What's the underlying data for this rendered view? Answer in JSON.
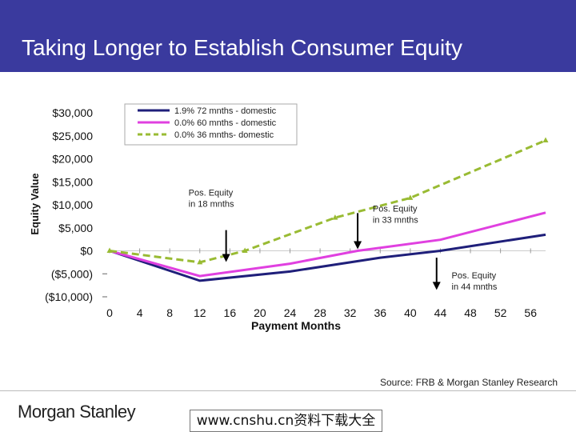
{
  "title": "Taking Longer to Establish Consumer Equity",
  "source": "Source: FRB & Morgan Stanley Research",
  "logo_text": "Morgan Stanley",
  "watermark": "www.cnshu.cn资料下载大全",
  "colors": {
    "header": "#3a3a9e",
    "series_domestic_72": "#1f1f7a",
    "series_domestic_60": "#e040e0",
    "series_domestic_36": "#99bb33"
  },
  "chart_data": {
    "type": "line",
    "xlabel": "Payment Months",
    "ylabel": "Equity Value",
    "xlim": [
      0,
      58
    ],
    "ylim": [
      -10000,
      30000
    ],
    "x_ticks": [
      0,
      4,
      8,
      12,
      16,
      20,
      24,
      28,
      32,
      36,
      40,
      44,
      48,
      52,
      56
    ],
    "y_ticks": [
      {
        "value": 30000,
        "label": "$30,000"
      },
      {
        "value": 25000,
        "label": "$25,000"
      },
      {
        "value": 20000,
        "label": "$20,000"
      },
      {
        "value": 15000,
        "label": "$15,000"
      },
      {
        "value": 10000,
        "label": "$10,000"
      },
      {
        "value": 5000,
        "label": "$5,000"
      },
      {
        "value": 0,
        "label": "$0"
      },
      {
        "value": -5000,
        "label": "($5,000)"
      },
      {
        "value": -10000,
        "label": "($10,000)"
      }
    ],
    "series": [
      {
        "name": "1.9% 72 mnths - domestic",
        "color": "#1f1f7a",
        "style": "solid",
        "points": [
          [
            0,
            0
          ],
          [
            12,
            -6500
          ],
          [
            24,
            -4500
          ],
          [
            36,
            -1500
          ],
          [
            44,
            0
          ],
          [
            58,
            3500
          ]
        ]
      },
      {
        "name": "0.0% 60 mnths - domestic",
        "color": "#e040e0",
        "style": "solid",
        "points": [
          [
            0,
            0
          ],
          [
            12,
            -5500
          ],
          [
            24,
            -2800
          ],
          [
            33,
            0
          ],
          [
            44,
            2400
          ],
          [
            58,
            8300
          ]
        ]
      },
      {
        "name": "0.0% 36 mnths- domestic",
        "color": "#99bb33",
        "style": "dashed",
        "points": [
          [
            0,
            0
          ],
          [
            12,
            -2500
          ],
          [
            18,
            0
          ],
          [
            30,
            7200
          ],
          [
            40,
            11500
          ],
          [
            58,
            24000
          ]
        ]
      }
    ],
    "annotations": [
      {
        "text": [
          "Pos. Equity",
          "in 18 mnths"
        ],
        "x": 15.5,
        "y": 2600,
        "text_x": 10.5,
        "text_y": 12000
      },
      {
        "text": [
          "Pos. Equity",
          "in 33 mnths"
        ],
        "x": 33,
        "y": 0,
        "text_x": 35,
        "text_y": 8500
      },
      {
        "text": [
          "Pos. Equity",
          "in 44 mnths"
        ],
        "x": 43.5,
        "y": -8500,
        "text_x": 45.5,
        "text_y": -6000
      }
    ]
  }
}
